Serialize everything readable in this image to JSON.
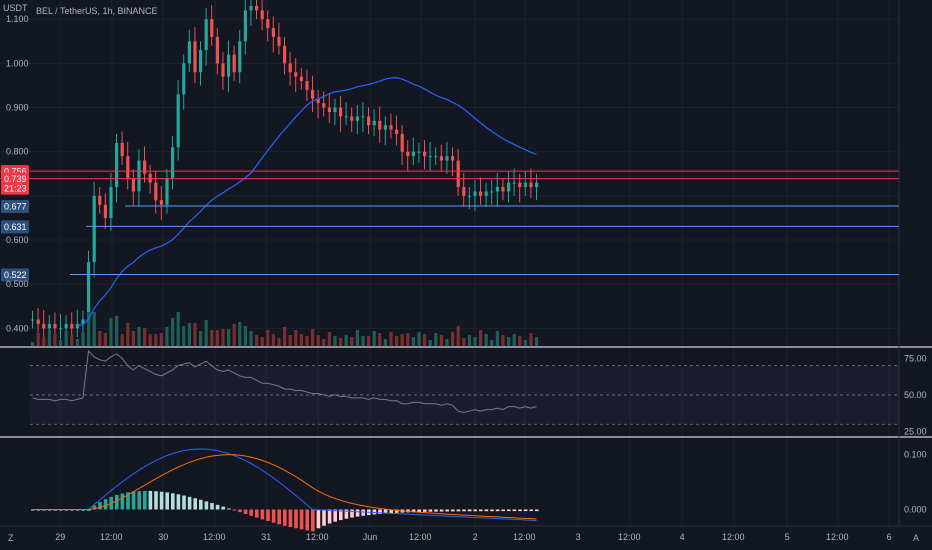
{
  "header": {
    "symbol_line": "BEL / TetherUS, 1h, BINANCE",
    "currency": "USDT"
  },
  "colors": {
    "background": "#131722",
    "up": "#26a69a",
    "down": "#ef5350",
    "ma_line": "#2962ff",
    "horizontal_red": "#f23645",
    "horizontal_blue": "#5b9cf6",
    "rsi_line": "#787b86",
    "rsi_band": "#7e57c2",
    "macd_line": "#2962ff",
    "signal_line": "#ff6d00"
  },
  "chart_data": [
    {
      "type": "candlestick",
      "pane": "price",
      "y_ticks": [
        "1.100",
        "1.000",
        "0.900",
        "0.800",
        "0.600",
        "0.500",
        "0.400"
      ],
      "x_ticks": [
        "29",
        "12:00",
        "30",
        "12:00",
        "31",
        "12:00",
        "Jun",
        "12:00",
        "2",
        "12:00",
        "3",
        "12:00",
        "4",
        "12:00",
        "5",
        "12:00",
        "6"
      ],
      "ylim": [
        0.36,
        1.13
      ],
      "horizontal_levels": [
        {
          "value": 0.756,
          "label": "0.756",
          "color": "red"
        },
        {
          "value": 0.739,
          "label": "0.739",
          "color": "red",
          "sub": "21:23"
        },
        {
          "value": 0.677,
          "label": "0.677",
          "color": "blue"
        },
        {
          "value": 0.631,
          "label": "0.631",
          "color": "blue"
        },
        {
          "value": 0.522,
          "label": "0.522",
          "color": "blue"
        }
      ],
      "overlay_ma": true,
      "volume": true,
      "ohlc_approx_close": [
        0.42,
        0.41,
        0.4,
        0.41,
        0.4,
        0.4,
        0.41,
        0.4,
        0.41,
        0.42,
        0.55,
        0.7,
        0.68,
        0.65,
        0.72,
        0.82,
        0.79,
        0.74,
        0.71,
        0.78,
        0.75,
        0.73,
        0.69,
        0.68,
        0.74,
        0.81,
        0.93,
        1.0,
        1.05,
        0.98,
        1.03,
        1.1,
        1.06,
        1.0,
        0.97,
        1.02,
        0.98,
        1.05,
        1.12,
        1.13,
        1.12,
        1.1,
        1.08,
        1.06,
        1.04,
        1.0,
        0.98,
        0.97,
        0.96,
        0.94,
        0.92,
        0.91,
        0.9,
        0.89,
        0.9,
        0.88,
        0.88,
        0.87,
        0.88,
        0.88,
        0.86,
        0.87,
        0.85,
        0.86,
        0.85,
        0.84,
        0.8,
        0.79,
        0.8,
        0.8,
        0.79,
        0.79,
        0.79,
        0.78,
        0.79,
        0.78,
        0.72,
        0.7,
        0.7,
        0.71,
        0.7,
        0.71,
        0.71,
        0.72,
        0.71,
        0.73,
        0.73,
        0.72,
        0.73,
        0.72,
        0.73
      ]
    },
    {
      "type": "line",
      "pane": "rsi",
      "y_ticks": [
        "75.00",
        "50.00",
        "25.00"
      ],
      "band": [
        30,
        70
      ],
      "ylim": [
        22,
        82
      ]
    },
    {
      "type": "histogram+line",
      "pane": "macd",
      "y_ticks": [
        "0.100",
        "0.000"
      ],
      "ylim": [
        -0.03,
        0.13
      ]
    }
  ]
}
